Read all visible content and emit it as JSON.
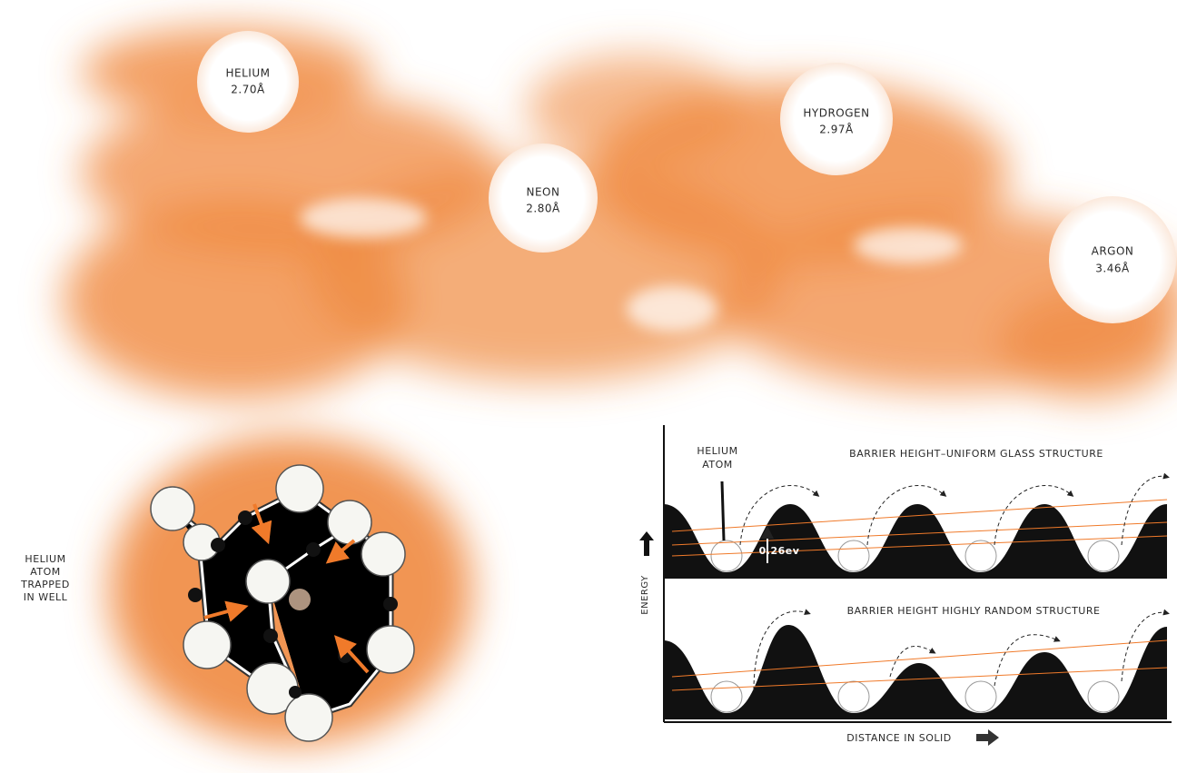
{
  "atoms": [
    {
      "name": "HELIUM",
      "size": "2.70Å"
    },
    {
      "name": "NEON",
      "size": "2.80Å"
    },
    {
      "name": "HYDROGEN",
      "size": "2.97Å"
    },
    {
      "name": "ARGON",
      "size": "3.46Å"
    }
  ],
  "trapped_label": [
    "HELIUM",
    "ATOM",
    "TRAPPED",
    "IN WELL"
  ],
  "diagram": {
    "helium_atom_label": [
      "HELIUM",
      "ATOM"
    ],
    "top_title": "BARRIER HEIGHT–UNIFORM GLASS STRUCTURE",
    "barrier_value": "0.26ev",
    "bottom_title": "BARRIER HEIGHT HIGHLY RANDOM STRUCTURE",
    "y_axis_label": "ENERGY",
    "x_axis_label": "DISTANCE IN SOLID"
  }
}
